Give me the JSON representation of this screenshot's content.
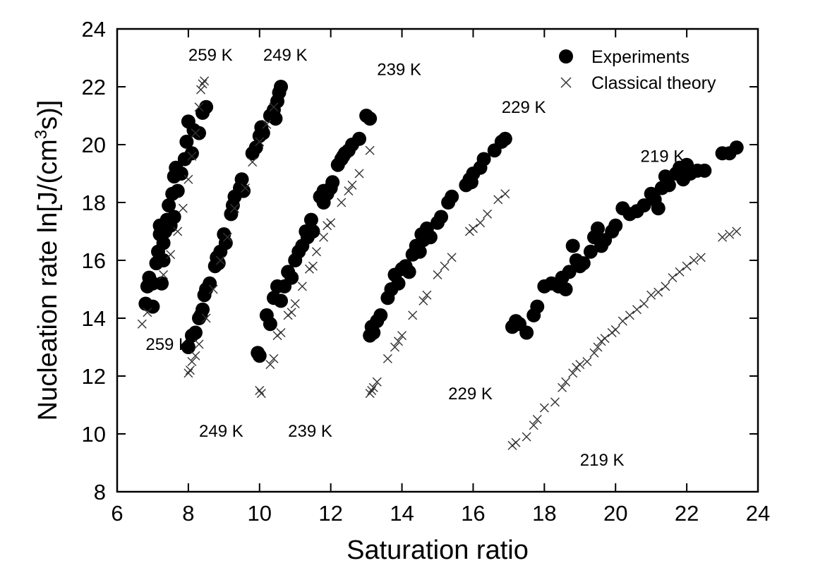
{
  "chart_data": {
    "type": "scatter",
    "xlabel": "Saturation ratio",
    "ylabel_parts": [
      "Nucleation rate ln[J/(cm",
      "3",
      "s)]"
    ],
    "xlim": [
      6,
      24
    ],
    "ylim": [
      8,
      24
    ],
    "x_ticks": [
      "6",
      "8",
      "10",
      "12",
      "14",
      "16",
      "18",
      "20",
      "22",
      "24"
    ],
    "y_ticks": [
      "8",
      "10",
      "12",
      "14",
      "16",
      "18",
      "20",
      "22",
      "24"
    ],
    "x_tick_values": [
      6,
      8,
      10,
      12,
      14,
      16,
      18,
      20,
      22,
      24
    ],
    "y_tick_values": [
      8,
      10,
      12,
      14,
      16,
      18,
      20,
      22,
      24
    ],
    "legend": {
      "placement": "top-right",
      "entries": [
        {
          "label": "Experiments",
          "marker": "filled-circle"
        },
        {
          "label": "Classical theory",
          "marker": "cross"
        }
      ]
    },
    "annotations": [
      {
        "text": "259 K",
        "x": 8.0,
        "y": 22.9
      },
      {
        "text": "249 K",
        "x": 10.1,
        "y": 22.9
      },
      {
        "text": "239 K",
        "x": 13.3,
        "y": 22.4
      },
      {
        "text": "229 K",
        "x": 16.8,
        "y": 21.1
      },
      {
        "text": "219 K",
        "x": 20.7,
        "y": 19.4
      },
      {
        "text": "259 K",
        "x": 6.8,
        "y": 12.9
      },
      {
        "text": "249 K",
        "x": 8.3,
        "y": 9.9
      },
      {
        "text": "239 K",
        "x": 10.8,
        "y": 9.9
      },
      {
        "text": "229 K",
        "x": 15.3,
        "y": 11.2
      },
      {
        "text": "219 K",
        "x": 19.0,
        "y": 8.9
      }
    ],
    "series": [
      {
        "name": "Experiments",
        "marker": "filled-circle",
        "points": [
          [
            6.8,
            14.5
          ],
          [
            6.85,
            15.1
          ],
          [
            6.9,
            15.4
          ],
          [
            7.0,
            14.4
          ],
          [
            7.1,
            15.9
          ],
          [
            7.15,
            16.3
          ],
          [
            7.2,
            16.9
          ],
          [
            7.2,
            17.2
          ],
          [
            7.3,
            16.6
          ],
          [
            7.35,
            17.0
          ],
          [
            7.4,
            17.4
          ],
          [
            7.45,
            17.9
          ],
          [
            7.5,
            17.2
          ],
          [
            7.55,
            18.3
          ],
          [
            7.6,
            18.9
          ],
          [
            7.65,
            19.2
          ],
          [
            7.7,
            18.4
          ],
          [
            7.8,
            19.0
          ],
          [
            7.9,
            19.5
          ],
          [
            7.95,
            20.1
          ],
          [
            8.0,
            20.8
          ],
          [
            8.1,
            19.7
          ],
          [
            8.15,
            20.5
          ],
          [
            8.3,
            20.4
          ],
          [
            8.4,
            21.1
          ],
          [
            8.5,
            21.3
          ],
          [
            7.25,
            15.2
          ],
          [
            7.3,
            16.0
          ],
          [
            7.0,
            15.2
          ],
          [
            7.6,
            17.5
          ],
          [
            8.0,
            13.0
          ],
          [
            8.1,
            13.4
          ],
          [
            8.2,
            13.5
          ],
          [
            8.3,
            14.0
          ],
          [
            8.4,
            14.3
          ],
          [
            8.45,
            14.8
          ],
          [
            8.5,
            15.0
          ],
          [
            8.6,
            15.2
          ],
          [
            8.75,
            15.8
          ],
          [
            8.8,
            16.1
          ],
          [
            8.9,
            16.3
          ],
          [
            9.0,
            16.9
          ],
          [
            9.05,
            16.6
          ],
          [
            9.2,
            17.6
          ],
          [
            9.25,
            17.9
          ],
          [
            9.3,
            18.2
          ],
          [
            9.45,
            18.5
          ],
          [
            9.5,
            18.8
          ],
          [
            9.55,
            18.4
          ],
          [
            9.8,
            19.7
          ],
          [
            9.9,
            19.9
          ],
          [
            10.0,
            20.3
          ],
          [
            10.05,
            20.6
          ],
          [
            10.1,
            20.4
          ],
          [
            10.3,
            21.0
          ],
          [
            10.4,
            21.2
          ],
          [
            10.5,
            21.5
          ],
          [
            10.55,
            21.8
          ],
          [
            10.6,
            22.0
          ],
          [
            10.45,
            20.9
          ],
          [
            8.35,
            14.1
          ],
          [
            8.85,
            15.9
          ],
          [
            9.95,
            12.8
          ],
          [
            10.0,
            12.7
          ],
          [
            10.2,
            14.1
          ],
          [
            10.3,
            13.8
          ],
          [
            10.4,
            14.7
          ],
          [
            10.5,
            15.1
          ],
          [
            10.6,
            14.6
          ],
          [
            10.7,
            15.1
          ],
          [
            10.8,
            15.6
          ],
          [
            10.9,
            15.4
          ],
          [
            11.0,
            16.0
          ],
          [
            11.1,
            16.3
          ],
          [
            11.2,
            16.5
          ],
          [
            11.3,
            17.0
          ],
          [
            11.35,
            16.8
          ],
          [
            11.45,
            17.4
          ],
          [
            11.5,
            17.0
          ],
          [
            11.7,
            18.2
          ],
          [
            11.8,
            18.0
          ],
          [
            11.9,
            18.3
          ],
          [
            12.0,
            18.5
          ],
          [
            12.05,
            18.7
          ],
          [
            12.2,
            19.3
          ],
          [
            12.3,
            19.5
          ],
          [
            12.4,
            19.7
          ],
          [
            12.5,
            19.8
          ],
          [
            12.6,
            20.0
          ],
          [
            12.8,
            20.2
          ],
          [
            13.0,
            21.0
          ],
          [
            13.1,
            20.9
          ],
          [
            12.35,
            19.6
          ],
          [
            11.8,
            18.4
          ],
          [
            13.1,
            13.4
          ],
          [
            13.15,
            13.7
          ],
          [
            13.2,
            13.5
          ],
          [
            13.3,
            13.9
          ],
          [
            13.4,
            14.1
          ],
          [
            13.6,
            14.7
          ],
          [
            13.7,
            15.0
          ],
          [
            13.8,
            15.5
          ],
          [
            13.9,
            15.2
          ],
          [
            14.0,
            15.7
          ],
          [
            14.1,
            15.8
          ],
          [
            14.2,
            15.6
          ],
          [
            14.3,
            16.2
          ],
          [
            14.4,
            16.5
          ],
          [
            14.5,
            16.3
          ],
          [
            14.6,
            16.7
          ],
          [
            14.7,
            17.1
          ],
          [
            14.8,
            16.8
          ],
          [
            15.0,
            17.3
          ],
          [
            15.1,
            17.5
          ],
          [
            15.3,
            18.0
          ],
          [
            15.4,
            18.2
          ],
          [
            15.8,
            18.6
          ],
          [
            15.9,
            18.8
          ],
          [
            16.0,
            19.0
          ],
          [
            16.2,
            19.2
          ],
          [
            16.3,
            19.5
          ],
          [
            16.6,
            19.8
          ],
          [
            16.8,
            20.1
          ],
          [
            16.9,
            20.2
          ],
          [
            14.55,
            16.9
          ],
          [
            15.95,
            18.7
          ],
          [
            17.1,
            13.7
          ],
          [
            17.2,
            13.9
          ],
          [
            17.3,
            13.8
          ],
          [
            17.5,
            13.5
          ],
          [
            17.7,
            14.1
          ],
          [
            17.8,
            14.4
          ],
          [
            18.0,
            15.1
          ],
          [
            18.2,
            15.2
          ],
          [
            18.4,
            15.1
          ],
          [
            18.5,
            15.4
          ],
          [
            18.6,
            15.0
          ],
          [
            18.7,
            15.6
          ],
          [
            18.8,
            16.5
          ],
          [
            18.9,
            16.0
          ],
          [
            19.0,
            15.8
          ],
          [
            19.1,
            15.9
          ],
          [
            19.3,
            16.3
          ],
          [
            19.4,
            16.8
          ],
          [
            19.5,
            17.1
          ],
          [
            19.6,
            16.5
          ],
          [
            19.7,
            16.7
          ],
          [
            19.9,
            17.0
          ],
          [
            20.0,
            17.2
          ],
          [
            20.2,
            17.8
          ],
          [
            20.4,
            17.6
          ],
          [
            20.6,
            17.7
          ],
          [
            20.8,
            17.9
          ],
          [
            21.0,
            18.3
          ],
          [
            21.1,
            18.1
          ],
          [
            21.2,
            17.8
          ],
          [
            21.3,
            18.5
          ],
          [
            21.4,
            18.9
          ],
          [
            21.5,
            18.6
          ],
          [
            21.7,
            19.0
          ],
          [
            21.8,
            19.2
          ],
          [
            21.9,
            18.8
          ],
          [
            22.0,
            19.3
          ],
          [
            22.1,
            19.0
          ],
          [
            22.3,
            19.1
          ],
          [
            22.5,
            19.1
          ],
          [
            23.0,
            19.7
          ],
          [
            23.2,
            19.7
          ],
          [
            23.4,
            19.9
          ]
        ]
      },
      {
        "name": "Classical theory",
        "marker": "cross",
        "points": [
          [
            6.7,
            13.8
          ],
          [
            6.85,
            14.2
          ],
          [
            7.3,
            15.5
          ],
          [
            7.5,
            16.2
          ],
          [
            7.7,
            17.0
          ],
          [
            7.85,
            17.8
          ],
          [
            8.0,
            18.8
          ],
          [
            8.1,
            19.6
          ],
          [
            8.2,
            20.4
          ],
          [
            8.3,
            21.3
          ],
          [
            8.35,
            21.9
          ],
          [
            8.4,
            22.1
          ],
          [
            8.45,
            22.2
          ],
          [
            8.0,
            12.1
          ],
          [
            8.05,
            12.2
          ],
          [
            8.1,
            12.5
          ],
          [
            8.2,
            12.7
          ],
          [
            8.3,
            13.1
          ],
          [
            8.5,
            14.0
          ],
          [
            8.7,
            15.0
          ],
          [
            8.9,
            16.0
          ],
          [
            9.1,
            16.8
          ],
          [
            9.3,
            17.8
          ],
          [
            9.6,
            18.5
          ],
          [
            9.8,
            19.4
          ],
          [
            10.0,
            20.1
          ],
          [
            10.2,
            20.7
          ],
          [
            10.4,
            21.3
          ],
          [
            10.0,
            11.5
          ],
          [
            10.05,
            11.4
          ],
          [
            10.3,
            12.4
          ],
          [
            10.4,
            12.6
          ],
          [
            10.5,
            13.4
          ],
          [
            10.6,
            13.5
          ],
          [
            10.8,
            14.1
          ],
          [
            10.9,
            14.2
          ],
          [
            11.0,
            14.5
          ],
          [
            11.2,
            15.1
          ],
          [
            11.4,
            15.7
          ],
          [
            11.5,
            15.8
          ],
          [
            11.6,
            16.3
          ],
          [
            11.8,
            16.8
          ],
          [
            11.9,
            17.2
          ],
          [
            12.0,
            17.3
          ],
          [
            12.3,
            18.0
          ],
          [
            12.5,
            18.4
          ],
          [
            12.6,
            18.6
          ],
          [
            12.8,
            19.0
          ],
          [
            13.1,
            19.8
          ],
          [
            13.1,
            11.4
          ],
          [
            13.15,
            11.5
          ],
          [
            13.2,
            11.6
          ],
          [
            13.3,
            11.8
          ],
          [
            13.6,
            12.6
          ],
          [
            13.8,
            13.0
          ],
          [
            13.9,
            13.2
          ],
          [
            14.0,
            13.4
          ],
          [
            14.3,
            14.1
          ],
          [
            14.6,
            14.6
          ],
          [
            14.7,
            14.8
          ],
          [
            15.0,
            15.5
          ],
          [
            15.2,
            15.8
          ],
          [
            15.4,
            16.1
          ],
          [
            15.9,
            17.0
          ],
          [
            16.0,
            17.1
          ],
          [
            16.2,
            17.3
          ],
          [
            16.4,
            17.6
          ],
          [
            16.7,
            18.1
          ],
          [
            16.9,
            18.3
          ],
          [
            17.1,
            9.6
          ],
          [
            17.2,
            9.7
          ],
          [
            17.5,
            9.9
          ],
          [
            17.7,
            10.3
          ],
          [
            17.8,
            10.5
          ],
          [
            18.0,
            10.9
          ],
          [
            18.3,
            11.1
          ],
          [
            18.5,
            11.6
          ],
          [
            18.6,
            11.8
          ],
          [
            18.8,
            12.1
          ],
          [
            18.9,
            12.3
          ],
          [
            19.0,
            12.4
          ],
          [
            19.2,
            12.5
          ],
          [
            19.4,
            12.8
          ],
          [
            19.5,
            13.0
          ],
          [
            19.6,
            13.2
          ],
          [
            19.7,
            13.3
          ],
          [
            19.9,
            13.5
          ],
          [
            20.0,
            13.6
          ],
          [
            20.2,
            13.9
          ],
          [
            20.4,
            14.1
          ],
          [
            20.6,
            14.3
          ],
          [
            20.8,
            14.5
          ],
          [
            21.0,
            14.8
          ],
          [
            21.2,
            14.9
          ],
          [
            21.4,
            15.1
          ],
          [
            21.6,
            15.4
          ],
          [
            21.8,
            15.6
          ],
          [
            22.0,
            15.8
          ],
          [
            22.2,
            16.0
          ],
          [
            22.4,
            16.1
          ],
          [
            23.0,
            16.8
          ],
          [
            23.2,
            16.9
          ],
          [
            23.4,
            17.0
          ]
        ]
      }
    ]
  }
}
